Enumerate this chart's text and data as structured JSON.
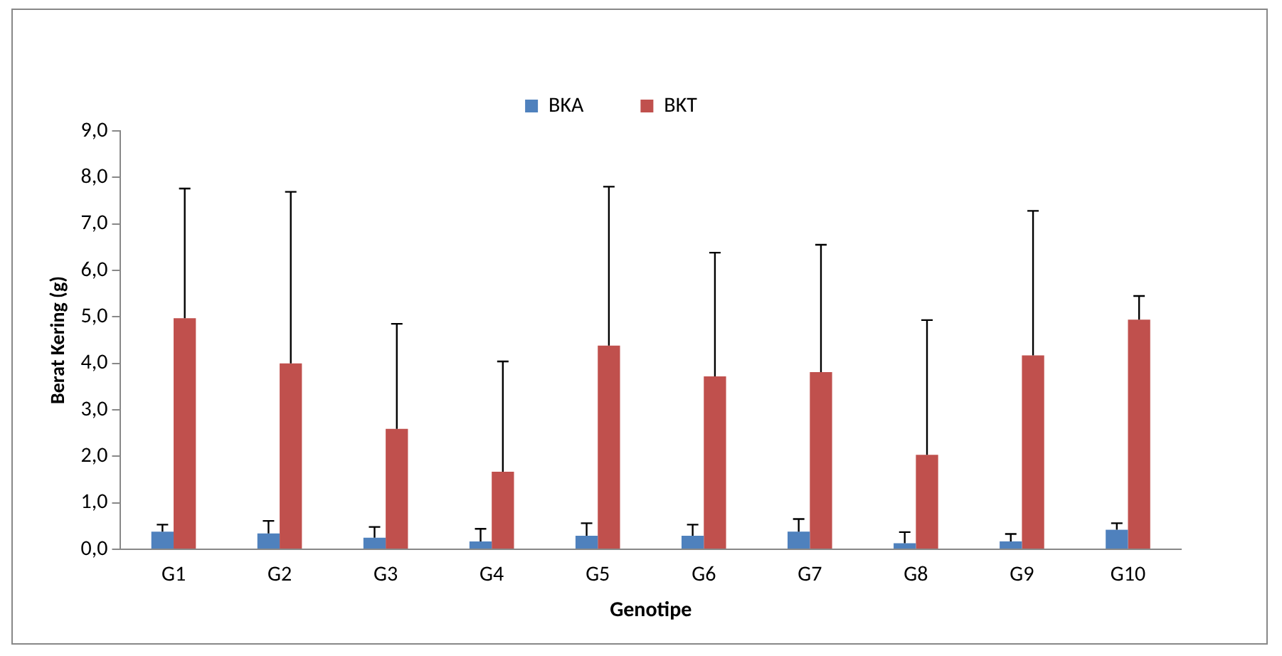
{
  "chart_data": {
    "type": "bar",
    "xlabel": "Genotipe",
    "ylabel": "Berat Kering (g)",
    "categories": [
      "G1",
      "G2",
      "G3",
      "G4",
      "G5",
      "G6",
      "G7",
      "G8",
      "G9",
      "G10"
    ],
    "series": [
      {
        "name": "BKA",
        "color": "#4f81bd",
        "values": [
          0.38,
          0.34,
          0.25,
          0.17,
          0.29,
          0.29,
          0.38,
          0.13,
          0.17,
          0.42
        ],
        "errors": [
          [
            0.38,
            0.53
          ],
          [
            0.34,
            0.61
          ],
          [
            0.25,
            0.48
          ],
          [
            0.17,
            0.44
          ],
          [
            0.29,
            0.56
          ],
          [
            0.29,
            0.53
          ],
          [
            0.38,
            0.65
          ],
          [
            0.13,
            0.37
          ],
          [
            0.17,
            0.33
          ],
          [
            0.42,
            0.56
          ]
        ]
      },
      {
        "name": "BKT",
        "color": "#c0504d",
        "values": [
          4.97,
          4.0,
          2.59,
          1.67,
          4.38,
          3.72,
          3.81,
          2.03,
          4.17,
          4.94
        ],
        "errors": [
          [
            4.97,
            7.76
          ],
          [
            4.0,
            7.69
          ],
          [
            2.59,
            4.85
          ],
          [
            1.67,
            4.04
          ],
          [
            4.38,
            7.8
          ],
          [
            3.72,
            6.38
          ],
          [
            3.81,
            6.55
          ],
          [
            2.03,
            4.93
          ],
          [
            4.17,
            7.28
          ],
          [
            4.94,
            5.45
          ]
        ]
      }
    ],
    "ylim": [
      0,
      9
    ],
    "yticks": [
      {
        "value": 0,
        "label": "0,0"
      },
      {
        "value": 1,
        "label": "1,0"
      },
      {
        "value": 2,
        "label": "2,0"
      },
      {
        "value": 3,
        "label": "3,0"
      },
      {
        "value": 4,
        "label": "4,0"
      },
      {
        "value": 5,
        "label": "5,0"
      },
      {
        "value": 6,
        "label": "6,0"
      },
      {
        "value": 7,
        "label": "7,0"
      },
      {
        "value": 8,
        "label": "8,0"
      },
      {
        "value": 9,
        "label": "9,0"
      }
    ],
    "grid": false,
    "legend": "top"
  }
}
